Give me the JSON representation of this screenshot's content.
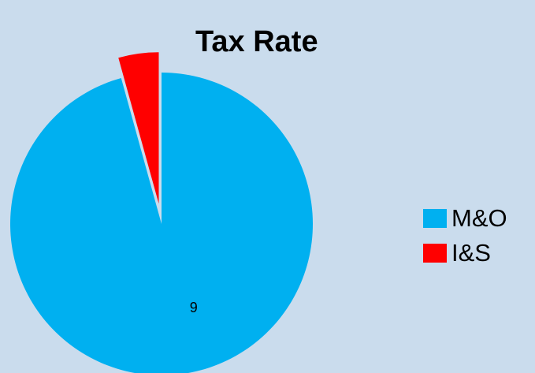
{
  "chart_data": {
    "type": "pie",
    "title": "Tax Rate",
    "slices": [
      {
        "name": "M&O",
        "value": 95.7,
        "color": "#00b0f0",
        "label": "9",
        "exploded": false
      },
      {
        "name": "I&S",
        "value": 4.3,
        "color": "#ff0000",
        "label": "",
        "exploded": true
      }
    ],
    "legend_position": "right",
    "background": "#cadced"
  }
}
